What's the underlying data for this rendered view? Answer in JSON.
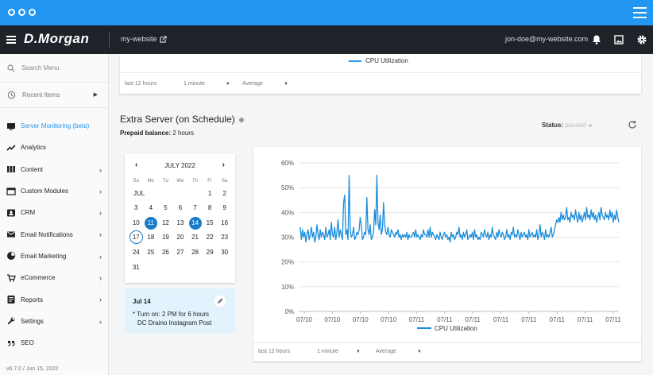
{
  "header": {
    "logo": "D.Morgan",
    "site": "my-website",
    "email": "jon-doe@my-website.com"
  },
  "sidebar": {
    "search_placeholder": "Search Menu",
    "recent": "Recent Items",
    "items": [
      {
        "label": "Server Monitoring (beta)",
        "icon": "monitor-icon",
        "active": true,
        "chevron": false
      },
      {
        "label": "Analytics",
        "icon": "trend-icon",
        "chevron": false
      },
      {
        "label": "Content",
        "icon": "columns-icon",
        "chevron": true
      },
      {
        "label": "Custom Modules",
        "icon": "window-icon",
        "chevron": true
      },
      {
        "label": "CRM",
        "icon": "contact-icon",
        "chevron": true
      },
      {
        "label": "Email Notifications",
        "icon": "mail-icon",
        "chevron": true
      },
      {
        "label": "Email Marketing",
        "icon": "pie-icon",
        "chevron": true
      },
      {
        "label": "eCommerce",
        "icon": "cart-icon",
        "chevron": true
      },
      {
        "label": "Reports",
        "icon": "report-icon",
        "chevron": true
      },
      {
        "label": "Settings",
        "icon": "wrench-icon",
        "chevron": true
      },
      {
        "label": "SEO",
        "icon": "quote-icon",
        "chevron": false
      }
    ],
    "version": "v6.7.0 / Jun 15, 2022"
  },
  "top_chart": {
    "legend": "CPU Utilization",
    "range": "last 12 hours",
    "interval": "1 minute",
    "agg": "Average"
  },
  "section": {
    "title": "Extra Server (on Schedule)",
    "prepaid_label": "Prepaid balance:",
    "prepaid_value": "2 hours",
    "status_label": "Status:",
    "status_value": "paused"
  },
  "calendar": {
    "month": "JULY 2022",
    "dow": [
      "Su",
      "Mo",
      "Tu",
      "We",
      "Th",
      "Fr",
      "Sa"
    ],
    "month_abbr": "JUL",
    "weeks": [
      [
        "",
        "",
        "",
        "",
        "",
        "1",
        "2"
      ],
      [
        "3",
        "4",
        "5",
        "6",
        "7",
        "8",
        "9"
      ],
      [
        "10",
        "11",
        "12",
        "13",
        "14",
        "15",
        "16"
      ],
      [
        "17",
        "18",
        "19",
        "20",
        "21",
        "22",
        "23"
      ],
      [
        "24",
        "25",
        "26",
        "27",
        "28",
        "29",
        "30"
      ],
      [
        "31",
        "",
        "",
        "",
        "",
        "",
        ""
      ]
    ],
    "selected": [
      "11",
      "14"
    ],
    "today": "17"
  },
  "event": {
    "date": "Jul 14",
    "line1": "* Turn on: 2 PM for 6 hours",
    "line2": "DC Draino Instagram Post"
  },
  "chart_data": {
    "type": "line",
    "title": "",
    "xlabel": "",
    "ylabel": "",
    "ylim": [
      0,
      60
    ],
    "yticks": [
      "0%",
      "10%",
      "20%",
      "30%",
      "40%",
      "50%",
      "60%"
    ],
    "xticks": [
      "07/10",
      "07/10",
      "07/10",
      "07/10",
      "07/11",
      "07/11",
      "07/11",
      "07/11",
      "07/11",
      "07/11",
      "07/11",
      "07/11"
    ],
    "grid": true,
    "legend": "bottom",
    "series": [
      {
        "name": "CPU Utilization",
        "color": "#1a8ddb",
        "values": [
          34,
          29,
          33,
          30,
          32,
          28,
          31,
          33,
          29,
          31,
          34,
          30,
          32,
          28,
          30,
          35,
          31,
          29,
          33,
          30,
          32,
          31,
          29,
          34,
          30,
          31,
          33,
          29,
          36,
          31,
          30,
          34,
          29,
          32,
          37,
          30,
          33,
          31,
          29,
          44,
          47,
          31,
          33,
          29,
          55,
          33,
          30,
          31,
          34,
          29,
          30,
          32,
          31,
          33,
          38,
          35,
          29,
          30,
          32,
          31,
          46,
          33,
          31,
          35,
          29,
          30,
          32,
          41,
          35,
          55,
          36,
          33,
          39,
          31,
          33,
          44,
          35,
          32,
          31,
          34,
          31,
          30,
          33,
          32,
          31,
          30,
          32,
          31,
          33,
          30,
          31,
          29,
          31,
          30,
          31,
          30,
          32,
          29,
          31,
          30,
          30,
          31,
          32,
          30,
          33,
          30,
          31,
          30,
          29,
          31,
          30,
          33,
          31,
          31,
          30,
          33,
          30,
          34,
          30,
          32,
          31,
          30,
          29,
          31,
          30,
          29,
          32,
          30,
          29,
          31,
          32,
          30,
          31,
          29,
          30,
          28,
          32,
          30,
          31,
          29,
          30,
          32,
          31,
          34,
          30,
          31,
          29,
          32,
          30,
          31,
          33,
          29,
          30,
          31,
          30,
          32,
          29,
          33,
          30,
          31,
          29,
          30,
          29,
          32,
          31,
          30,
          33,
          31,
          30,
          32,
          29,
          31,
          30,
          34,
          31,
          30,
          29,
          32,
          30,
          33,
          31,
          30,
          32,
          31,
          29,
          30,
          33,
          30,
          31,
          29,
          32,
          31,
          34,
          30,
          31,
          30,
          33,
          31,
          29,
          32,
          30,
          31,
          32,
          30,
          31,
          29,
          33,
          30,
          31,
          32,
          30,
          31,
          30,
          33,
          29,
          31,
          35,
          30,
          32,
          31,
          29,
          33,
          30,
          31,
          30,
          32,
          34,
          30,
          31,
          33,
          35,
          37,
          36,
          38,
          36,
          40,
          37,
          39,
          37,
          38,
          42,
          37,
          38,
          36,
          40,
          38,
          39,
          37,
          41,
          38,
          36,
          40,
          37,
          39,
          36,
          38,
          40,
          37,
          42,
          38,
          39,
          37,
          41,
          38,
          40,
          37,
          39,
          36,
          38,
          40,
          37,
          42,
          39,
          38,
          37,
          40,
          38,
          39,
          37,
          41,
          38,
          40,
          36,
          39,
          37,
          41,
          38,
          36
        ]
      }
    ]
  },
  "bottom_controls": {
    "range": "last 12 hours",
    "interval": "1 minute",
    "agg": "Average"
  },
  "colors": {
    "accent": "#2196f3",
    "header": "#1e2229",
    "selected_day": "#1a7bc6"
  }
}
